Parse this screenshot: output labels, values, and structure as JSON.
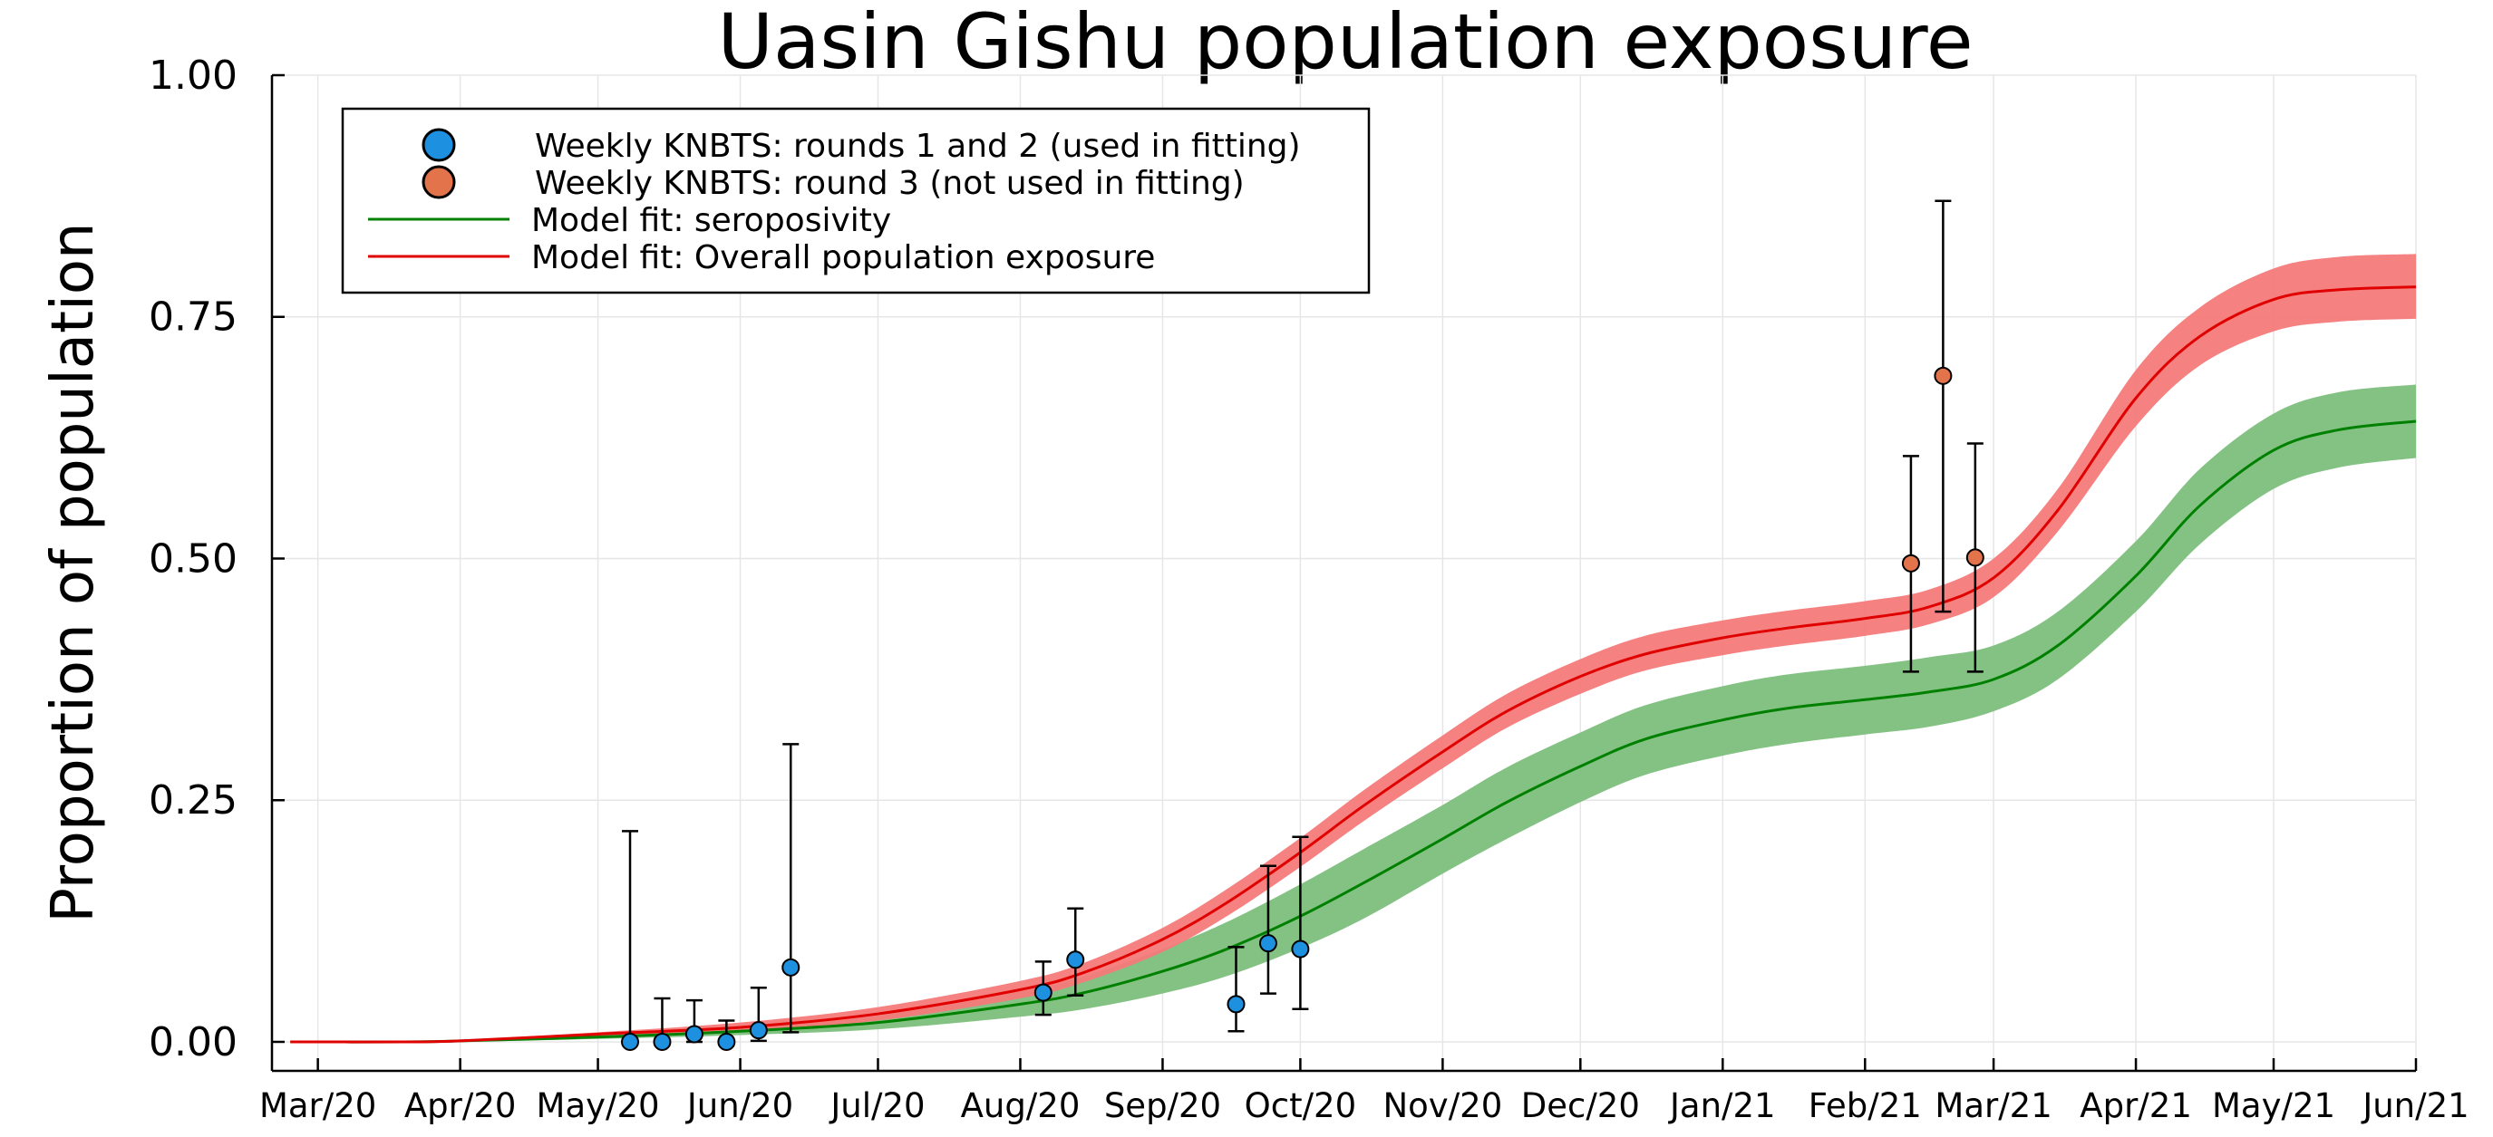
{
  "chart_data": {
    "type": "line",
    "title": "Uasin Gishu population exposure",
    "xlabel": "",
    "ylabel": "Proportion of population",
    "x_axis_type": "date",
    "xlim": [
      "2020-02-20",
      "2021-06-01"
    ],
    "ylim": [
      -0.03,
      1.0
    ],
    "grid": true,
    "legend_position": "top-left",
    "x_ticks": [
      "Mar/20",
      "Apr/20",
      "May/20",
      "Jun/20",
      "Jul/20",
      "Aug/20",
      "Sep/20",
      "Oct/20",
      "Nov/20",
      "Dec/20",
      "Jan/21",
      "Feb/21",
      "Mar/21",
      "Apr/21",
      "May/21",
      "Jun/21"
    ],
    "x_tick_dates": [
      "2020-03-01",
      "2020-04-01",
      "2020-05-01",
      "2020-06-01",
      "2020-07-01",
      "2020-08-01",
      "2020-09-01",
      "2020-10-01",
      "2020-11-01",
      "2020-12-01",
      "2021-01-01",
      "2021-02-01",
      "2021-03-01",
      "2021-04-01",
      "2021-05-01",
      "2021-06-01"
    ],
    "y_ticks": [
      "0.00",
      "0.25",
      "0.50",
      "0.75",
      "1.00"
    ],
    "y_tick_values": [
      0,
      0.25,
      0.5,
      0.75,
      1.0
    ],
    "series": [
      {
        "name": "Weekly KNBTS: rounds 1 and 2 (used in fitting)",
        "kind": "scatter_errorbar",
        "color": "#1e90e0",
        "points": [
          {
            "x": "2020-05-08",
            "y": 0.0,
            "lo": 0.0,
            "hi": 0.218
          },
          {
            "x": "2020-05-15",
            "y": 0.0,
            "lo": 0.0,
            "hi": 0.045
          },
          {
            "x": "2020-05-22",
            "y": 0.008,
            "lo": 0.0,
            "hi": 0.043
          },
          {
            "x": "2020-05-29",
            "y": 0.0,
            "lo": 0.0,
            "hi": 0.022
          },
          {
            "x": "2020-06-05",
            "y": 0.012,
            "lo": 0.001,
            "hi": 0.056
          },
          {
            "x": "2020-06-12",
            "y": 0.077,
            "lo": 0.01,
            "hi": 0.308
          },
          {
            "x": "2020-08-06",
            "y": 0.051,
            "lo": 0.028,
            "hi": 0.083
          },
          {
            "x": "2020-08-13",
            "y": 0.085,
            "lo": 0.048,
            "hi": 0.138
          },
          {
            "x": "2020-09-17",
            "y": 0.039,
            "lo": 0.011,
            "hi": 0.098
          },
          {
            "x": "2020-09-24",
            "y": 0.102,
            "lo": 0.05,
            "hi": 0.182
          },
          {
            "x": "2020-10-01",
            "y": 0.096,
            "lo": 0.034,
            "hi": 0.212
          }
        ]
      },
      {
        "name": "Weekly KNBTS: round 3 (not used in fitting)",
        "kind": "scatter_errorbar",
        "color": "#e2734a",
        "points": [
          {
            "x": "2021-02-11",
            "y": 0.495,
            "lo": 0.383,
            "hi": 0.606
          },
          {
            "x": "2021-02-18",
            "y": 0.689,
            "lo": 0.445,
            "hi": 0.87
          },
          {
            "x": "2021-02-25",
            "y": 0.501,
            "lo": 0.383,
            "hi": 0.619
          }
        ]
      },
      {
        "name": "Model fit: seroposivity",
        "kind": "line_band",
        "color": "#008000",
        "band_color": "#7dbf7d",
        "x": [
          "2020-02-24",
          "2020-03-20",
          "2020-04-01",
          "2020-05-01",
          "2020-06-01",
          "2020-07-01",
          "2020-08-01",
          "2020-08-15",
          "2020-09-01",
          "2020-09-15",
          "2020-10-01",
          "2020-10-15",
          "2020-11-01",
          "2020-11-15",
          "2020-12-01",
          "2020-12-15",
          "2021-01-01",
          "2021-01-15",
          "2021-02-01",
          "2021-02-15",
          "2021-03-01",
          "2021-03-15",
          "2021-04-01",
          "2021-04-15",
          "2021-05-01",
          "2021-05-15",
          "2021-06-01"
        ],
        "y": [
          0.0,
          0.0,
          0.001,
          0.005,
          0.011,
          0.02,
          0.039,
          0.051,
          0.073,
          0.096,
          0.13,
          0.165,
          0.21,
          0.248,
          0.285,
          0.313,
          0.333,
          0.345,
          0.354,
          0.362,
          0.375,
          0.41,
          0.482,
          0.555,
          0.612,
          0.633,
          0.642
        ],
        "lo": [
          0.0,
          0.0,
          0.0,
          0.003,
          0.007,
          0.013,
          0.026,
          0.034,
          0.05,
          0.068,
          0.097,
          0.128,
          0.174,
          0.21,
          0.248,
          0.276,
          0.296,
          0.308,
          0.318,
          0.326,
          0.342,
          0.375,
          0.445,
          0.515,
          0.572,
          0.594,
          0.604
        ],
        "hi": [
          0.0,
          0.001,
          0.002,
          0.007,
          0.015,
          0.027,
          0.052,
          0.068,
          0.096,
          0.124,
          0.163,
          0.2,
          0.245,
          0.284,
          0.32,
          0.348,
          0.368,
          0.38,
          0.389,
          0.398,
          0.41,
          0.445,
          0.518,
          0.593,
          0.65,
          0.672,
          0.68
        ]
      },
      {
        "name": "Model fit: Overall population exposure",
        "kind": "line_band",
        "color": "#e00000",
        "band_color": "#f47a7a",
        "x": [
          "2020-02-24",
          "2020-03-20",
          "2020-04-01",
          "2020-05-01",
          "2020-06-01",
          "2020-07-01",
          "2020-08-01",
          "2020-08-15",
          "2020-09-01",
          "2020-09-15",
          "2020-10-01",
          "2020-10-15",
          "2020-11-01",
          "2020-11-15",
          "2020-12-01",
          "2020-12-15",
          "2021-01-01",
          "2021-01-15",
          "2021-02-01",
          "2021-02-15",
          "2021-03-01",
          "2021-03-15",
          "2021-04-01",
          "2021-04-15",
          "2021-05-01",
          "2021-05-15",
          "2021-06-01"
        ],
        "y": [
          0.0,
          0.0,
          0.001,
          0.008,
          0.015,
          0.029,
          0.054,
          0.072,
          0.106,
          0.144,
          0.196,
          0.245,
          0.3,
          0.342,
          0.378,
          0.401,
          0.418,
          0.428,
          0.438,
          0.45,
          0.48,
          0.55,
          0.666,
          0.73,
          0.768,
          0.778,
          0.781
        ],
        "lo": [
          0.0,
          0.0,
          0.0,
          0.006,
          0.011,
          0.022,
          0.045,
          0.062,
          0.093,
          0.13,
          0.181,
          0.229,
          0.283,
          0.325,
          0.36,
          0.384,
          0.4,
          0.41,
          0.42,
          0.432,
          0.46,
          0.528,
          0.637,
          0.7,
          0.735,
          0.745,
          0.748
        ],
        "hi": [
          0.0,
          0.001,
          0.002,
          0.01,
          0.02,
          0.036,
          0.063,
          0.082,
          0.118,
          0.158,
          0.211,
          0.261,
          0.317,
          0.36,
          0.396,
          0.42,
          0.436,
          0.446,
          0.456,
          0.468,
          0.5,
          0.572,
          0.695,
          0.76,
          0.8,
          0.812,
          0.815
        ]
      }
    ]
  }
}
